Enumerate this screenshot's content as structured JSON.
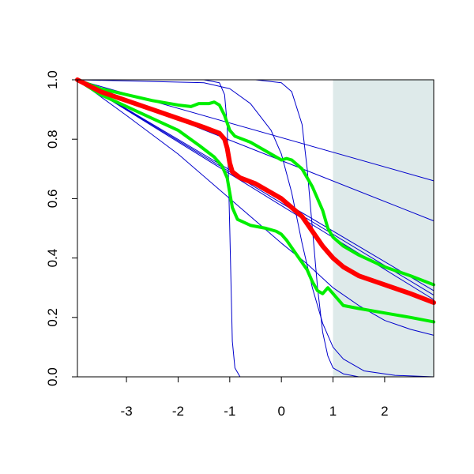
{
  "chart_data": {
    "type": "line",
    "title": "",
    "xlabel": "",
    "ylabel": "",
    "xlim": [
      -3.95,
      2.95
    ],
    "ylim": [
      0,
      1
    ],
    "x_ticks": [
      -3,
      -2,
      -1,
      0,
      1,
      2
    ],
    "x_tick_labels": [
      "-3",
      "-2",
      "-1",
      "0",
      "1",
      "2"
    ],
    "y_ticks": [
      0,
      0.2,
      0.4,
      0.6,
      0.8,
      1
    ],
    "y_tick_labels": [
      "0.0",
      "0.2",
      "0.4",
      "0.6",
      "0.8",
      "1.0"
    ],
    "shaded_region": {
      "x_from": 1,
      "x_to": 2.95,
      "color": "#deeaea"
    },
    "series": [
      {
        "color": "#0000cc",
        "width": 1,
        "points": [
          [
            -3.95,
            1
          ],
          [
            -1.5,
            1
          ],
          [
            -1.2,
            0.99
          ],
          [
            -1.1,
            0.95
          ],
          [
            -1.05,
            0.85
          ],
          [
            -1.0,
            0.5
          ],
          [
            -0.95,
            0.12
          ],
          [
            -0.9,
            0.03
          ],
          [
            -0.8,
            0
          ],
          [
            2.95,
            0
          ]
        ]
      },
      {
        "color": "#0000cc",
        "width": 1,
        "points": [
          [
            -3.95,
            1
          ],
          [
            -0.5,
            1
          ],
          [
            0,
            0.99
          ],
          [
            0.2,
            0.96
          ],
          [
            0.4,
            0.85
          ],
          [
            0.5,
            0.7
          ],
          [
            0.6,
            0.5
          ],
          [
            0.7,
            0.3
          ],
          [
            0.8,
            0.15
          ],
          [
            0.9,
            0.07
          ],
          [
            1.0,
            0.03
          ],
          [
            1.2,
            0.01
          ],
          [
            1.5,
            0
          ],
          [
            2.95,
            0
          ]
        ]
      },
      {
        "color": "#0000cc",
        "width": 1,
        "points": [
          [
            -3.95,
            1
          ],
          [
            -1.5,
            0.99
          ],
          [
            -1,
            0.97
          ],
          [
            -0.6,
            0.92
          ],
          [
            -0.2,
            0.83
          ],
          [
            0,
            0.75
          ],
          [
            0.2,
            0.62
          ],
          [
            0.4,
            0.45
          ],
          [
            0.6,
            0.3
          ],
          [
            0.8,
            0.18
          ],
          [
            1.0,
            0.1
          ],
          [
            1.2,
            0.06
          ],
          [
            1.6,
            0.02
          ],
          [
            2.2,
            0.005
          ],
          [
            2.95,
            0
          ]
        ]
      },
      {
        "color": "#0000cc",
        "width": 1,
        "points": [
          [
            -3.95,
            1
          ],
          [
            2.95,
            0.66
          ]
        ]
      },
      {
        "color": "#0000cc",
        "width": 1,
        "points": [
          [
            -3.95,
            1
          ],
          [
            2.95,
            0.525
          ]
        ]
      },
      {
        "color": "#0000cc",
        "width": 1,
        "points": [
          [
            -3.95,
            1
          ],
          [
            2.95,
            0.29
          ]
        ]
      },
      {
        "color": "#0000cc",
        "width": 1,
        "points": [
          [
            -3.95,
            1
          ],
          [
            2.95,
            0.275
          ]
        ]
      },
      {
        "color": "#0000cc",
        "width": 1,
        "points": [
          [
            -3.95,
            1
          ],
          [
            2.95,
            0.26
          ]
        ]
      },
      {
        "color": "#0000cc",
        "width": 1,
        "points": [
          [
            -3.95,
            1
          ],
          [
            -3,
            0.88
          ],
          [
            -2,
            0.75
          ],
          [
            -1,
            0.6
          ],
          [
            0,
            0.45
          ],
          [
            0.5,
            0.38
          ],
          [
            1.0,
            0.3
          ],
          [
            1.5,
            0.24
          ],
          [
            2,
            0.19
          ],
          [
            2.5,
            0.16
          ],
          [
            2.95,
            0.14
          ]
        ]
      },
      {
        "color": "#00ee00",
        "width": 4,
        "points": [
          [
            -3.95,
            1
          ],
          [
            -3.5,
            0.97
          ],
          [
            -3,
            0.95
          ],
          [
            -2.5,
            0.93
          ],
          [
            -2,
            0.915
          ],
          [
            -1.75,
            0.91
          ],
          [
            -1.6,
            0.92
          ],
          [
            -1.4,
            0.92
          ],
          [
            -1.3,
            0.925
          ],
          [
            -1.2,
            0.915
          ],
          [
            -1.1,
            0.88
          ],
          [
            -1.0,
            0.83
          ],
          [
            -0.9,
            0.81
          ],
          [
            -0.6,
            0.79
          ],
          [
            -0.4,
            0.77
          ],
          [
            -0.2,
            0.75
          ],
          [
            0,
            0.73
          ],
          [
            0.1,
            0.735
          ],
          [
            0.2,
            0.73
          ],
          [
            0.4,
            0.7
          ],
          [
            0.6,
            0.64
          ],
          [
            0.8,
            0.56
          ],
          [
            0.9,
            0.5
          ],
          [
            1.0,
            0.47
          ],
          [
            1.2,
            0.44
          ],
          [
            1.5,
            0.41
          ],
          [
            2,
            0.37
          ],
          [
            2.5,
            0.34
          ],
          [
            2.95,
            0.31
          ]
        ]
      },
      {
        "color": "#00ee00",
        "width": 4,
        "points": [
          [
            -3.95,
            1
          ],
          [
            -3.5,
            0.95
          ],
          [
            -3,
            0.91
          ],
          [
            -2.5,
            0.87
          ],
          [
            -2,
            0.83
          ],
          [
            -1.6,
            0.78
          ],
          [
            -1.3,
            0.74
          ],
          [
            -1.15,
            0.71
          ],
          [
            -1.05,
            0.67
          ],
          [
            -1.0,
            0.62
          ],
          [
            -0.95,
            0.57
          ],
          [
            -0.85,
            0.53
          ],
          [
            -0.6,
            0.51
          ],
          [
            -0.3,
            0.5
          ],
          [
            -0.1,
            0.49
          ],
          [
            0,
            0.48
          ],
          [
            0.1,
            0.46
          ],
          [
            0.3,
            0.41
          ],
          [
            0.5,
            0.36
          ],
          [
            0.6,
            0.32
          ],
          [
            0.7,
            0.29
          ],
          [
            0.8,
            0.28
          ],
          [
            0.9,
            0.3
          ],
          [
            1.0,
            0.28
          ],
          [
            1.2,
            0.24
          ],
          [
            1.5,
            0.23
          ],
          [
            2,
            0.215
          ],
          [
            2.5,
            0.2
          ],
          [
            2.95,
            0.185
          ]
        ]
      },
      {
        "color": "#ff0000",
        "width": 6,
        "points": [
          [
            -3.95,
            1
          ],
          [
            -3.5,
            0.96
          ],
          [
            -3,
            0.93
          ],
          [
            -2.5,
            0.9
          ],
          [
            -2,
            0.87
          ],
          [
            -1.5,
            0.84
          ],
          [
            -1.2,
            0.82
          ],
          [
            -1.1,
            0.8
          ],
          [
            -1.05,
            0.77
          ],
          [
            -1.0,
            0.72
          ],
          [
            -0.95,
            0.69
          ],
          [
            -0.8,
            0.67
          ],
          [
            -0.5,
            0.65
          ],
          [
            -0.2,
            0.62
          ],
          [
            0,
            0.6
          ],
          [
            0.2,
            0.57
          ],
          [
            0.4,
            0.54
          ],
          [
            0.6,
            0.49
          ],
          [
            0.8,
            0.44
          ],
          [
            1.0,
            0.4
          ],
          [
            1.2,
            0.37
          ],
          [
            1.5,
            0.34
          ],
          [
            2,
            0.31
          ],
          [
            2.5,
            0.28
          ],
          [
            2.95,
            0.25
          ]
        ]
      }
    ]
  }
}
